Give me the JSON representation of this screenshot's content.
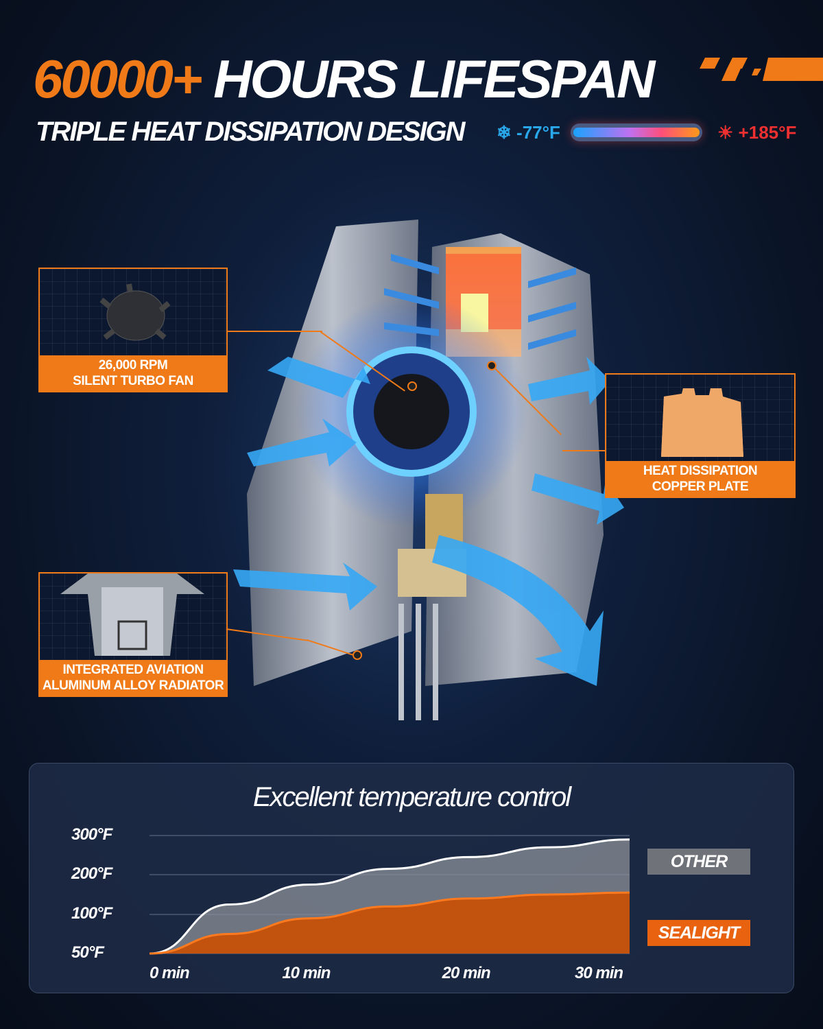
{
  "header": {
    "title_number": "60000+",
    "title_text": " HOURS LIFESPAN",
    "subtitle": "TRIPLE HEAT DISSIPATION DESIGN"
  },
  "temperature_range": {
    "cold": "-77°F",
    "hot": "+185°F",
    "cold_icon": "snowflake-icon",
    "hot_icon": "sun-icon",
    "cold_color": "#29a8ec",
    "hot_color": "#ef3030"
  },
  "callouts": [
    {
      "line1": "26,000 RPM",
      "line2": "SILENT TURBO FAN"
    },
    {
      "line1": "HEAT DISSIPATION",
      "line2": "COPPER PLATE"
    },
    {
      "line1": "INTEGRATED AVIATION",
      "line2": "ALUMINUM ALLOY RADIATOR"
    }
  ],
  "colors": {
    "accent": "#f07a17",
    "other": "#7d8088",
    "sealight": "#e8620f"
  },
  "chart_data": {
    "type": "area",
    "title": "Excellent temperature control",
    "x": [
      0,
      5,
      10,
      15,
      20,
      25,
      30
    ],
    "x_tick_labels": [
      "0 min",
      "10 min",
      "20 min",
      "30 min"
    ],
    "y_tick_labels": [
      "300°F",
      "200°F",
      "100°F",
      "50°F"
    ],
    "y_ticks": [
      300,
      200,
      100,
      50
    ],
    "series": [
      {
        "name": "OTHER",
        "values": [
          50,
          125,
          175,
          215,
          245,
          270,
          290
        ]
      },
      {
        "name": "SEALIGHT",
        "values": [
          50,
          75,
          95,
          120,
          140,
          150,
          155
        ]
      }
    ],
    "grid": true,
    "legend": "right"
  }
}
